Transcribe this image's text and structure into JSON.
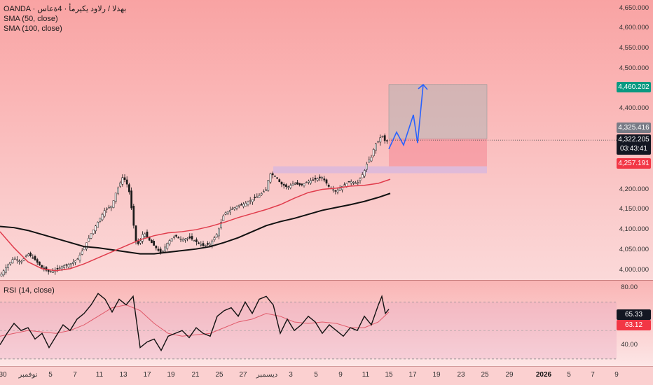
{
  "legend": {
    "symbol": "OANDA · بهذلا / رلاود يكيرمأ · 4ةعاس",
    "sma50": "SMA (50, close)",
    "sma100": "SMA (100, close)",
    "rsi": "RSI (14, close)"
  },
  "price_tags": {
    "target": "4,460.202",
    "entry_top": "4,325.416",
    "last_price": "4,322.205",
    "countdown": "03:43:41",
    "stop": "4,257.191",
    "rsi_main": "65.33",
    "rsi_ma": "63.12"
  },
  "colors": {
    "bg_top": "#f9a3a3",
    "bg_bottom": "#fde6e6",
    "target_tag": "#089981",
    "stop_tag": "#f23645",
    "sma50": "#e03c4c",
    "sma100": "#111111",
    "projection": "#2962ff",
    "zone": "#d9b8dd",
    "rsi_line": "#111111",
    "rsi_ma": "#e05a6a"
  },
  "chart_data": [
    {
      "type": "line",
      "title": "OANDA · بهذلا / رلاود يكيرمأ · 4ةعاس",
      "y_axis": [
        "4,650.000",
        "4,600.000",
        "4,550.000",
        "4,500.000",
        "4,400.000",
        "4,200.000",
        "4,150.000",
        "4,100.000",
        "4,050.000",
        "4,000.000"
      ],
      "x_axis": [
        "30",
        "نوفمبر",
        "5",
        "7",
        "11",
        "13",
        "17",
        "19",
        "21",
        "25",
        "27",
        "ديسمبر",
        "3",
        "5",
        "9",
        "11",
        "15",
        "17",
        "19",
        "23",
        "25",
        "29",
        "2026",
        "5",
        "7",
        "9"
      ],
      "ylim": [
        3975,
        4670
      ],
      "series": [
        {
          "name": "SMA (50, close)",
          "x": [
            0,
            20,
            40,
            60,
            80,
            100,
            120,
            140,
            160,
            180,
            200,
            220,
            240,
            260,
            280,
            300,
            320,
            340,
            360,
            380,
            400,
            420,
            440,
            460,
            480,
            500,
            520,
            540,
            557
          ],
          "values": [
            4095,
            4055,
            4020,
            4003,
            3998,
            4003,
            4015,
            4030,
            4045,
            4060,
            4075,
            4085,
            4092,
            4095,
            4100,
            4108,
            4118,
            4130,
            4140,
            4150,
            4162,
            4178,
            4192,
            4200,
            4203,
            4208,
            4210,
            4215,
            4225
          ]
        },
        {
          "name": "SMA (100, close)",
          "x": [
            0,
            20,
            40,
            60,
            80,
            100,
            120,
            140,
            160,
            180,
            200,
            220,
            240,
            260,
            280,
            300,
            320,
            340,
            360,
            380,
            400,
            420,
            440,
            460,
            480,
            500,
            520,
            540,
            557
          ],
          "values": [
            4108,
            4105,
            4098,
            4088,
            4078,
            4068,
            4058,
            4055,
            4050,
            4045,
            4040,
            4040,
            4044,
            4048,
            4052,
            4058,
            4068,
            4080,
            4095,
            4110,
            4120,
            4128,
            4138,
            4148,
            4155,
            4162,
            4170,
            4180,
            4190
          ]
        },
        {
          "name": "price",
          "x": [
            0,
            10,
            20,
            30,
            40,
            50,
            60,
            70,
            80,
            90,
            100,
            110,
            120,
            130,
            140,
            150,
            160,
            165,
            170,
            175,
            180,
            185,
            190,
            195,
            200,
            205,
            210,
            220,
            230,
            240,
            250,
            260,
            270,
            280,
            290,
            300,
            310,
            320,
            330,
            340,
            350,
            360,
            370,
            380,
            385,
            390,
            395,
            400,
            410,
            420,
            430,
            440,
            450,
            460,
            470,
            480,
            490,
            500,
            510,
            520,
            525,
            530,
            535,
            540,
            545,
            550,
            555
          ],
          "values": [
            3985,
            4010,
            4030,
            4020,
            4040,
            4025,
            4005,
            3995,
            4000,
            4010,
            4015,
            4025,
            4055,
            4090,
            4120,
            4150,
            4160,
            4190,
            4210,
            4230,
            4220,
            4190,
            4120,
            4060,
            4070,
            4095,
            4080,
            4060,
            4040,
            4070,
            4085,
            4075,
            4080,
            4070,
            4060,
            4065,
            4090,
            4140,
            4150,
            4160,
            4165,
            4175,
            4185,
            4200,
            4240,
            4235,
            4230,
            4215,
            4205,
            4215,
            4210,
            4220,
            4225,
            4230,
            4205,
            4195,
            4210,
            4220,
            4215,
            4245,
            4270,
            4280,
            4310,
            4320,
            4335,
            4318,
            4322
          ]
        }
      ]
    },
    {
      "type": "line",
      "title": "RSI (14, close)",
      "y_axis": [
        "80.00",
        "40.00"
      ],
      "ylim": [
        25,
        85
      ],
      "series": [
        {
          "name": "RSI (14, close)",
          "x": [
            0,
            10,
            20,
            30,
            40,
            50,
            60,
            70,
            80,
            90,
            100,
            110,
            120,
            130,
            140,
            150,
            160,
            170,
            180,
            190,
            200,
            210,
            220,
            230,
            240,
            250,
            260,
            270,
            280,
            290,
            300,
            310,
            320,
            330,
            340,
            350,
            360,
            370,
            380,
            390,
            400,
            410,
            420,
            430,
            440,
            450,
            460,
            470,
            480,
            490,
            500,
            510,
            520,
            530,
            540,
            545,
            550,
            555
          ],
          "values": [
            40,
            48,
            55,
            50,
            52,
            44,
            48,
            38,
            46,
            54,
            50,
            58,
            62,
            68,
            76,
            72,
            63,
            72,
            68,
            74,
            38,
            42,
            44,
            36,
            46,
            48,
            50,
            45,
            52,
            48,
            46,
            60,
            64,
            66,
            60,
            70,
            62,
            72,
            74,
            68,
            48,
            58,
            50,
            54,
            60,
            56,
            48,
            54,
            50,
            46,
            52,
            50,
            60,
            54,
            68,
            74,
            62,
            65
          ]
        },
        {
          "name": "RSI-based MA",
          "x": [
            0,
            20,
            40,
            60,
            80,
            100,
            120,
            140,
            160,
            180,
            200,
            220,
            240,
            260,
            280,
            300,
            320,
            340,
            360,
            380,
            400,
            420,
            440,
            460,
            480,
            500,
            520,
            540,
            555
          ],
          "values": [
            46,
            48,
            50,
            49,
            48,
            50,
            54,
            60,
            66,
            68,
            64,
            55,
            48,
            46,
            47,
            48,
            52,
            56,
            58,
            62,
            60,
            56,
            55,
            56,
            55,
            52,
            52,
            56,
            63
          ]
        }
      ]
    }
  ]
}
